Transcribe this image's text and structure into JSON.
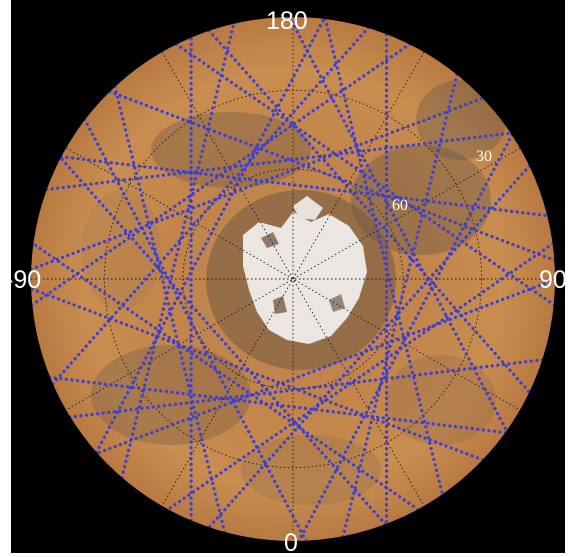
{
  "map": {
    "projection": "polar stereographic (south pole)",
    "longitude_labels": {
      "top": "180",
      "left": "-90",
      "right": "90",
      "bottom": "0"
    },
    "latitude_labels": {
      "outer": "30",
      "inner": "60"
    },
    "colors": {
      "background": "#000000",
      "terrain": "#c8894a",
      "terrain_dark": "#7a5a3a",
      "polar_cap": "#f2eeea",
      "track_dots": "#3d3fd0",
      "graticule": "#1a1a1a",
      "label": "#ffffff"
    }
  }
}
